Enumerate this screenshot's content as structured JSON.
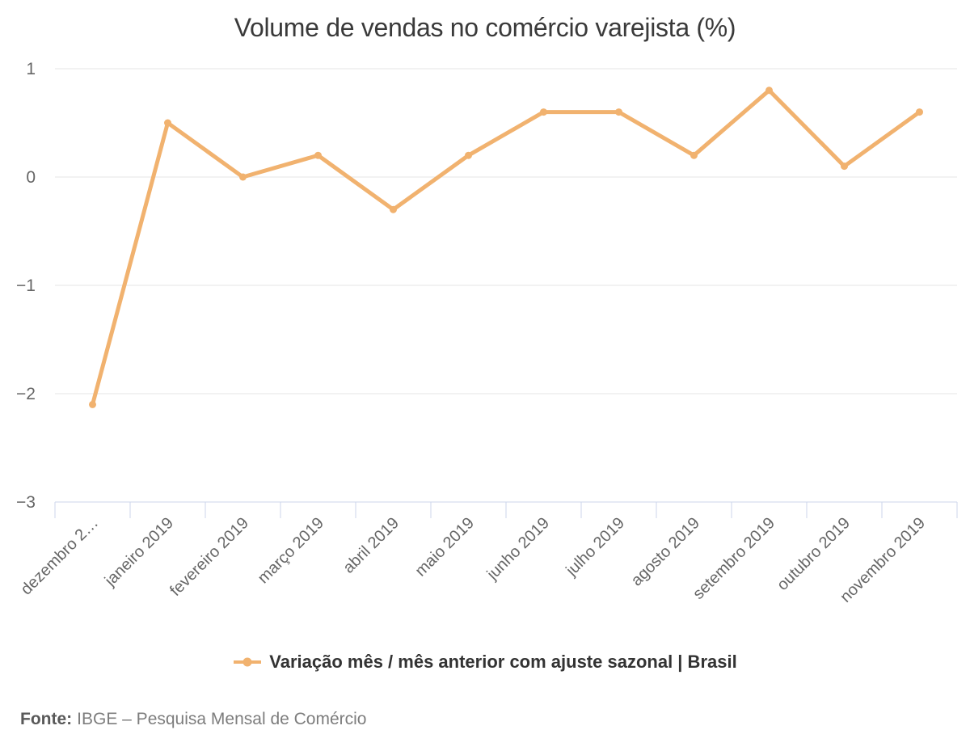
{
  "header": {
    "title": "Volume de vendas no comércio varejista (%)"
  },
  "legend": {
    "label": "Variação mês / mês anterior com ajuste sazonal | Brasil"
  },
  "footer": {
    "label": "Fonte:",
    "text": "IBGE – Pesquisa Mensal de Comércio"
  },
  "colors": {
    "line": "#f1b26f",
    "grid": "#e6e6e6",
    "axis": "#ccd6eb",
    "tick_label": "#666666",
    "title": "#3a3a3a",
    "legend_text": "#333333",
    "background": "#ffffff"
  },
  "chart_data": {
    "type": "line",
    "title": "Volume de vendas no comércio varejista (%)",
    "categories": [
      "dezembro 2…",
      "janeiro 2019",
      "fevereiro 2019",
      "março 2019",
      "abril 2019",
      "maio 2019",
      "junho 2019",
      "julho 2019",
      "agosto 2019",
      "setembro 2019",
      "outubro 2019",
      "novembro 2019"
    ],
    "series": [
      {
        "name": "Variação mês / mês anterior com ajuste sazonal | Brasil",
        "values": [
          -2.1,
          0.5,
          0,
          0.2,
          -0.3,
          0.2,
          0.6,
          0.6,
          0.2,
          0.8,
          0.1,
          0.6
        ]
      }
    ],
    "xlabel": "",
    "ylabel": "",
    "ylim": [
      -3,
      1
    ],
    "yticks": [
      1,
      0,
      -1,
      -2,
      -3
    ],
    "grid": true,
    "legend_position": "bottom",
    "marker": "circle"
  }
}
